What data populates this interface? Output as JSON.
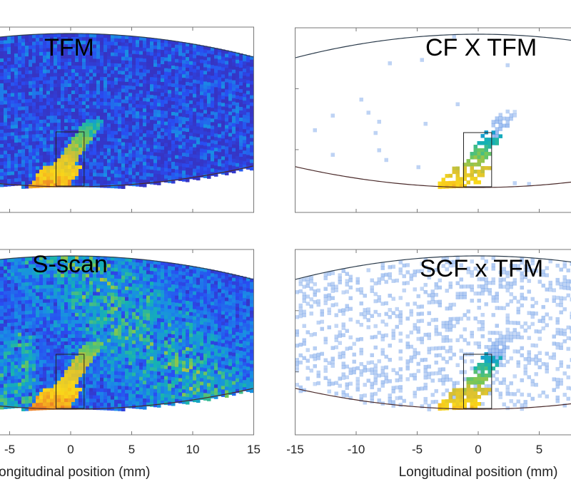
{
  "chart_data": [
    {
      "type": "heatmap",
      "title": "TFM",
      "xlabel": "",
      "xlim": [
        -15,
        15
      ],
      "xticks": [
        -15,
        -10,
        -5,
        0,
        5,
        10,
        15
      ],
      "tick_labels": [],
      "colormap": "parula"
    },
    {
      "type": "heatmap",
      "title": "CF X TFM",
      "xlabel": "",
      "xlim": [
        -15,
        15
      ],
      "xticks": [
        -15,
        -10,
        -5,
        0,
        5,
        10,
        15
      ],
      "tick_labels": [],
      "colormap": "parula"
    },
    {
      "type": "heatmap",
      "title": "S-scan",
      "xlabel": "Longitudinal position (mm)",
      "xlim": [
        -15,
        15
      ],
      "xticks": [
        -15,
        -10,
        -5,
        0,
        5,
        10,
        15
      ],
      "tick_labels": [
        "-5",
        "0",
        "5",
        "10",
        "15"
      ],
      "colormap": "parula"
    },
    {
      "type": "heatmap",
      "title": "SCF x TFM",
      "xlabel": "Longitudinal position (mm)",
      "xlim": [
        -15,
        15
      ],
      "xticks": [
        -15,
        -10,
        -5,
        0,
        5,
        10,
        15
      ],
      "tick_labels": [
        "-15",
        "-10",
        "-5",
        "0",
        "5"
      ],
      "colormap": "parula"
    }
  ]
}
